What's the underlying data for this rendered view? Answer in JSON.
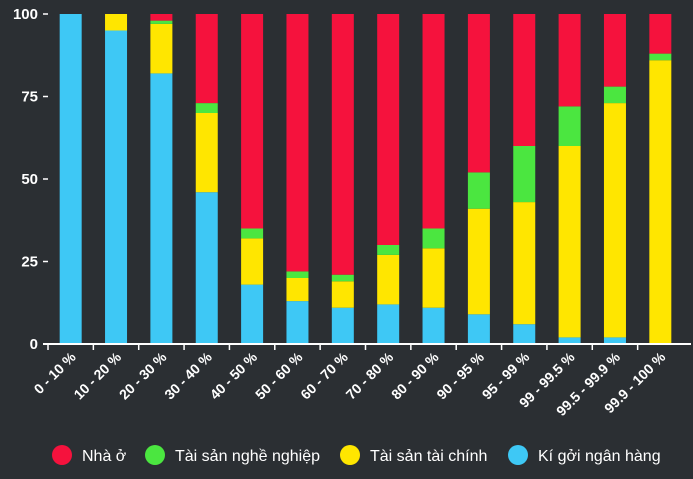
{
  "chart_data": {
    "type": "bar",
    "stacked": true,
    "title": "",
    "xlabel": "",
    "ylabel": "",
    "ylim": [
      0,
      100
    ],
    "yticks": [
      0,
      25,
      50,
      75,
      100
    ],
    "grid": false,
    "legend_position": "bottom",
    "categories": [
      "0 - 10 %",
      "10 - 20 %",
      "20 - 30 %",
      "30 - 40 %",
      "40 - 50 %",
      "50 - 60 %",
      "60 - 70 %",
      "70 - 80 %",
      "80 - 90 %",
      "90 - 95 %",
      "95 - 99 %",
      "99 - 99.5 %",
      "99.5 - 99.9 %",
      "99.9 - 100 %"
    ],
    "series": [
      {
        "name": "Kí gởi ngân hàng",
        "color": "#3ec8f5",
        "values": [
          100,
          95,
          82,
          46,
          18,
          13,
          11,
          12,
          11,
          9,
          6,
          2,
          2,
          0
        ]
      },
      {
        "name": "Tài sản tài chính",
        "color": "#ffe600",
        "values": [
          0,
          5,
          15,
          24,
          14,
          7,
          8,
          15,
          18,
          32,
          37,
          58,
          71,
          86
        ]
      },
      {
        "name": "Tài sản nghề nghiệp",
        "color": "#4be640",
        "values": [
          0,
          0,
          1,
          3,
          3,
          2,
          2,
          3,
          6,
          11,
          17,
          12,
          5,
          2
        ]
      },
      {
        "name": "Nhà ở",
        "color": "#f5123d",
        "values": [
          0,
          0,
          2,
          27,
          65,
          78,
          79,
          70,
          65,
          48,
          40,
          28,
          22,
          12
        ]
      }
    ],
    "legend_order": [
      "Nhà ở",
      "Tài sản nghề nghiệp",
      "Tài sản tài chính",
      "Kí gởi ngân hàng"
    ]
  }
}
